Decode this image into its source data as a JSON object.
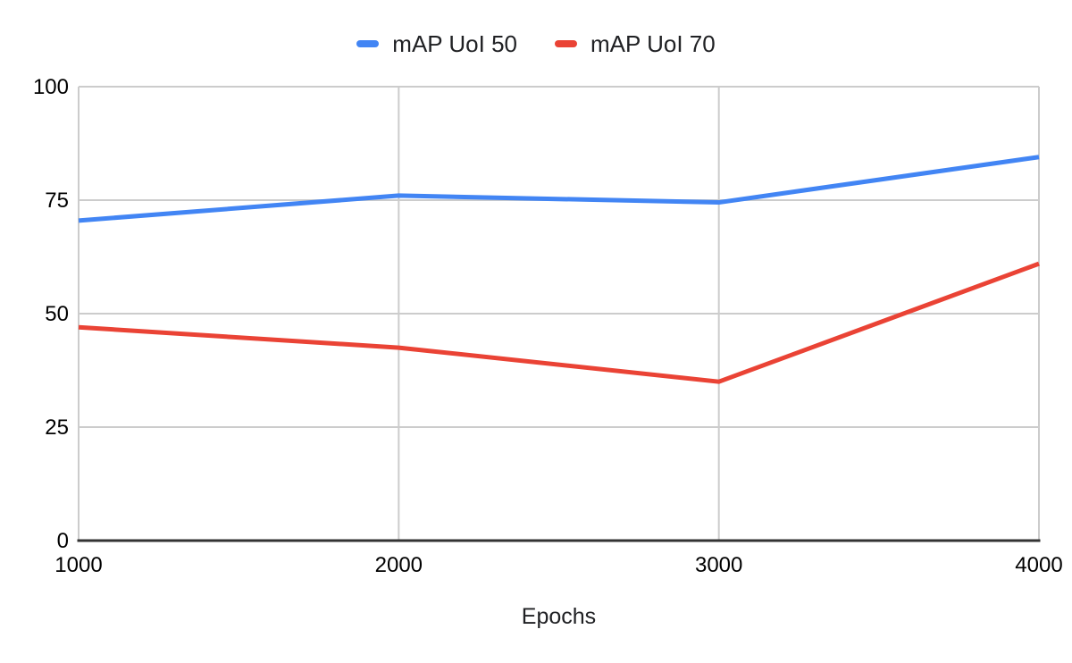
{
  "chart_data": {
    "type": "line",
    "x": [
      1000,
      2000,
      3000,
      4000
    ],
    "xtick_labels": [
      "1000",
      "2000",
      "3000",
      "4000"
    ],
    "series": [
      {
        "name": "mAP UoI 50",
        "color": "#4285F4",
        "values": [
          70.5,
          76,
          74.5,
          84.5
        ]
      },
      {
        "name": "mAP UoI 70",
        "color": "#EA4335",
        "values": [
          47,
          42.5,
          35,
          61
        ]
      }
    ],
    "title": "",
    "xlabel": "Epochs",
    "ylabel": "",
    "ylim": [
      0,
      100
    ],
    "yticks": [
      0,
      25,
      50,
      75,
      100
    ],
    "grid": true,
    "legend_position": "top",
    "colors": {
      "background": "#ffffff",
      "gridline": "#cccccc",
      "axis_line": "#333333",
      "label_text": "#000000",
      "legend_text": "#202124"
    }
  }
}
